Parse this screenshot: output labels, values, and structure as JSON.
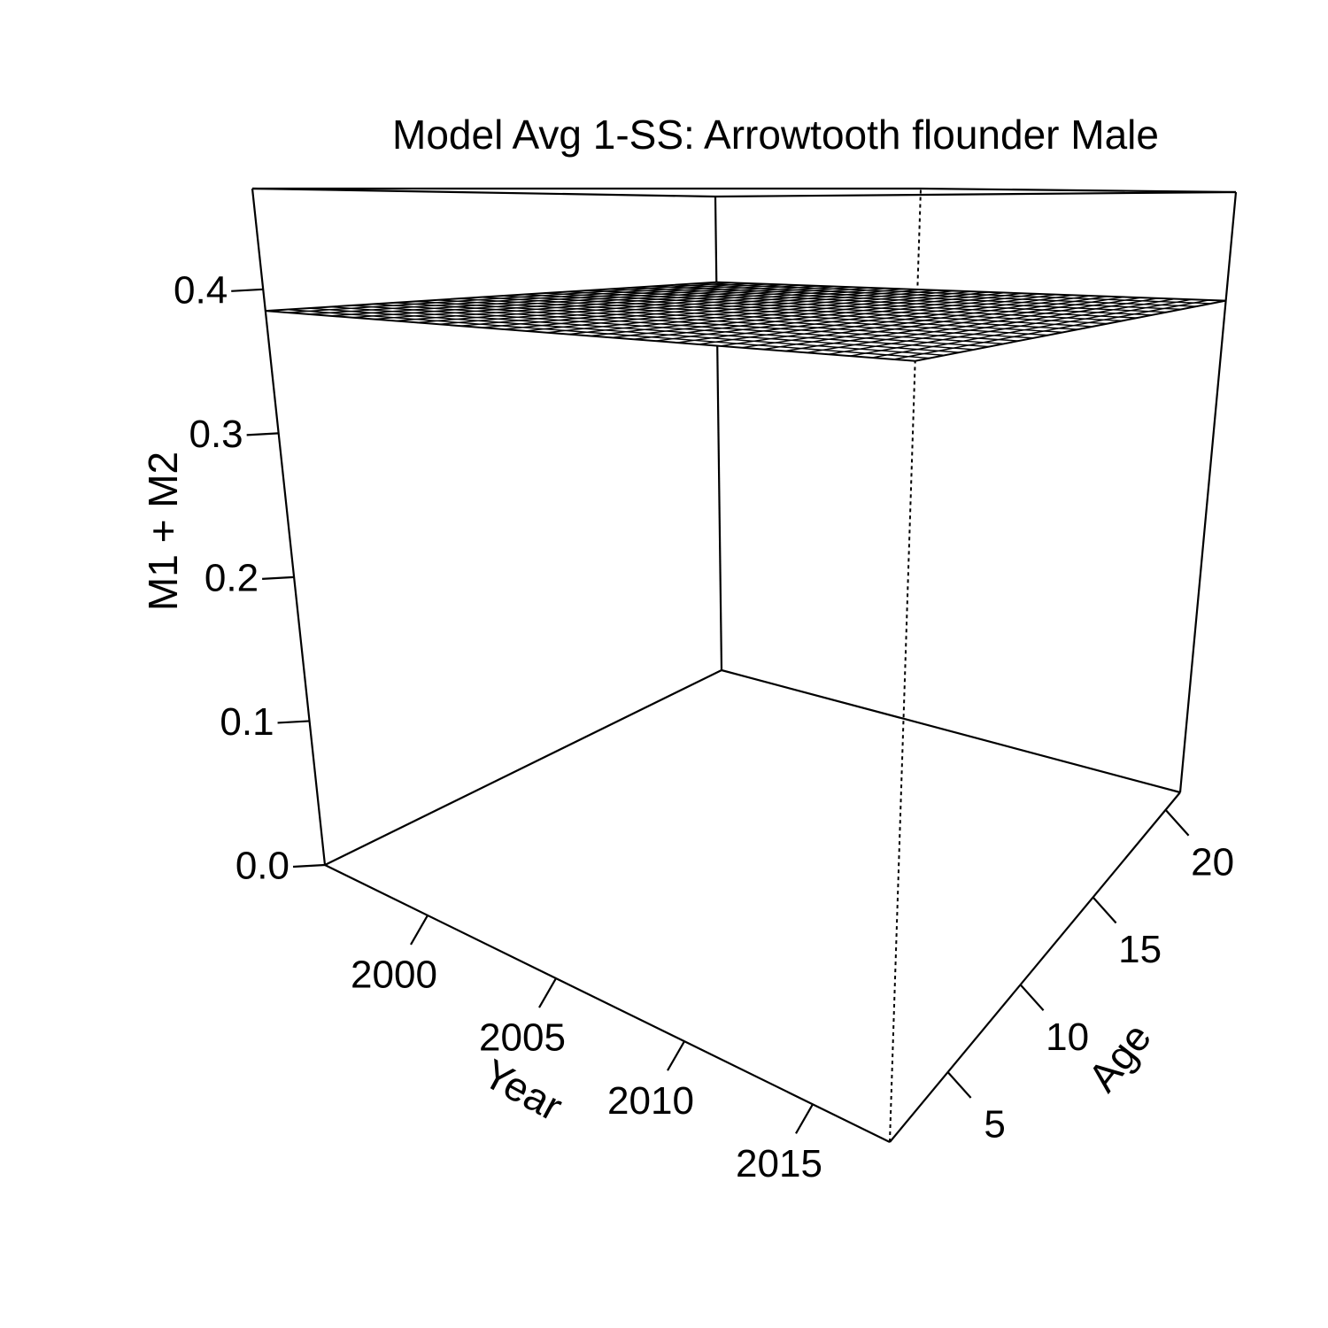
{
  "chart_data": {
    "type": "surface",
    "title": "Model Avg 1-SS: Arrowtooth flounder Male",
    "xlabel": "Year",
    "ylabel": "Age",
    "zlabel": "M1 + M2",
    "xlim": [
      1996,
      2018
    ],
    "ylim": [
      1,
      21
    ],
    "zlim": [
      0,
      0.47
    ],
    "x_ticks": [
      {
        "value": 2000,
        "label": "2000"
      },
      {
        "value": 2005,
        "label": "2005"
      },
      {
        "value": 2010,
        "label": "2010"
      },
      {
        "value": 2015,
        "label": "2015"
      }
    ],
    "y_ticks": [
      {
        "value": 5,
        "label": "5"
      },
      {
        "value": 10,
        "label": "10"
      },
      {
        "value": 15,
        "label": "15"
      },
      {
        "value": 20,
        "label": "20"
      }
    ],
    "z_ticks": [
      {
        "value": 0.0,
        "label": "0.0"
      },
      {
        "value": 0.1,
        "label": "0.1"
      },
      {
        "value": 0.2,
        "label": "0.2"
      },
      {
        "value": 0.3,
        "label": "0.3"
      },
      {
        "value": 0.4,
        "label": "0.4"
      }
    ],
    "surface": {
      "year_range": [
        1996,
        2018
      ],
      "age_range": [
        1,
        21
      ],
      "grid_years": 30,
      "grid_ages": 21,
      "value": 0.385,
      "line_color": "#000000",
      "fill_color": "#ffffff"
    }
  }
}
